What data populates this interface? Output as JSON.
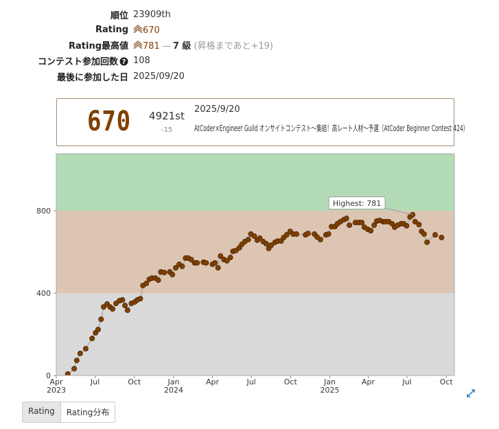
{
  "profile": {
    "rows": [
      {
        "label": "順位",
        "value": "23909th"
      },
      {
        "label": "Rating",
        "value": "670"
      },
      {
        "label": "Rating最高値",
        "value": "781",
        "dash": "—",
        "rank": "7 級",
        "note": "(昇格まであと+19)"
      },
      {
        "label": "コンテスト参加回数",
        "value": "108"
      },
      {
        "label": "最後に参加した日",
        "value": "2025/09/20"
      }
    ]
  },
  "status": {
    "rating": "670",
    "place": "4921st",
    "diff": "-15",
    "date": "2025/9/20",
    "contest": "AtCoder×Engineer Guild オンサイトコンテスト～集結！高レート人材～予選（AtCoder Beginner Contest 424）"
  },
  "chart_data": {
    "type": "line",
    "xlim": [
      "2023-04-01",
      "2025-10-20"
    ],
    "xticks": [
      {
        "value": "2023-04-01",
        "label": "Apr"
      },
      {
        "value": "2023-07-01",
        "label": "Jul"
      },
      {
        "value": "2023-10-01",
        "label": "Oct"
      },
      {
        "value": "2024-01-01",
        "label": "Jan"
      },
      {
        "value": "2024-04-01",
        "label": "Apr"
      },
      {
        "value": "2024-07-01",
        "label": "Jul"
      },
      {
        "value": "2024-10-01",
        "label": "Oct"
      },
      {
        "value": "2025-01-01",
        "label": "Jan"
      },
      {
        "value": "2025-04-01",
        "label": "Apr"
      },
      {
        "value": "2025-07-01",
        "label": "Jul"
      },
      {
        "value": "2025-10-01",
        "label": "Oct"
      }
    ],
    "xtick_years": [
      {
        "value": "2023-04-01",
        "label": "2023"
      },
      {
        "value": "2024-01-01",
        "label": "2024"
      },
      {
        "value": "2025-01-01",
        "label": "2025"
      }
    ],
    "ylim": [
      0,
      1077
    ],
    "yticks": [
      0,
      400,
      800
    ],
    "bands": [
      {
        "from": 0,
        "to": 400,
        "color": "#d9d9d9"
      },
      {
        "from": 400,
        "to": 800,
        "color": "#dcc5b2"
      },
      {
        "from": 800,
        "to": 1200,
        "color": "#b3dbb5"
      }
    ],
    "line_color": "#aaaaaa",
    "marker_color": "#804000",
    "annotation": {
      "label": "Highest: 781"
    },
    "series": [
      {
        "name": "Rating",
        "x": [
          "2023-04-28",
          "2023-05-13",
          "2023-05-19",
          "2023-05-27",
          "2023-06-09",
          "2023-06-24",
          "2023-07-02",
          "2023-07-08",
          "2023-07-15",
          "2023-07-21",
          "2023-07-29",
          "2023-08-05",
          "2023-08-11",
          "2023-08-19",
          "2023-08-27",
          "2023-09-03",
          "2023-09-09",
          "2023-09-15",
          "2023-09-24",
          "2023-10-02",
          "2023-10-08",
          "2023-10-15",
          "2023-10-21",
          "2023-10-29",
          "2023-11-05",
          "2023-11-11",
          "2023-11-19",
          "2023-11-26",
          "2023-12-02",
          "2023-12-10",
          "2023-12-23",
          "2023-12-29",
          "2024-01-06",
          "2024-01-14",
          "2024-01-21",
          "2024-01-29",
          "2024-02-04",
          "2024-02-11",
          "2024-02-19",
          "2024-02-25",
          "2024-03-11",
          "2024-03-17",
          "2024-04-01",
          "2024-04-07",
          "2024-04-14",
          "2024-04-20",
          "2024-04-28",
          "2024-05-05",
          "2024-05-13",
          "2024-05-19",
          "2024-05-26",
          "2024-06-03",
          "2024-06-09",
          "2024-06-16",
          "2024-06-24",
          "2024-06-30",
          "2024-07-08",
          "2024-07-15",
          "2024-07-21",
          "2024-07-29",
          "2024-08-05",
          "2024-08-11",
          "2024-08-17",
          "2024-08-26",
          "2024-09-01",
          "2024-09-09",
          "2024-09-15",
          "2024-09-22",
          "2024-09-30",
          "2024-10-07",
          "2024-10-15",
          "2024-11-05",
          "2024-11-11",
          "2024-11-26",
          "2024-12-02",
          "2024-12-10",
          "2024-12-23",
          "2024-12-29",
          "2025-01-05",
          "2025-01-13",
          "2025-01-19",
          "2025-01-26",
          "2025-02-03",
          "2025-02-09",
          "2025-02-16",
          "2025-03-02",
          "2025-03-10",
          "2025-03-17",
          "2025-03-23",
          "2025-03-31",
          "2025-04-07",
          "2025-04-15",
          "2025-04-21",
          "2025-04-28",
          "2025-05-06",
          "2025-05-12",
          "2025-05-19",
          "2025-05-27",
          "2025-06-02",
          "2025-06-09",
          "2025-06-17",
          "2025-06-23",
          "2025-06-30",
          "2025-07-08",
          "2025-07-14",
          "2025-07-20",
          "2025-07-29",
          "2025-08-04",
          "2025-08-10",
          "2025-08-17",
          "2025-09-05",
          "2025-09-20"
        ],
        "values": [
          7,
          33,
          73,
          107,
          130,
          180,
          207,
          223,
          273,
          333,
          347,
          333,
          323,
          350,
          363,
          367,
          340,
          317,
          350,
          357,
          367,
          373,
          437,
          447,
          467,
          473,
          473,
          463,
          503,
          500,
          503,
          490,
          523,
          540,
          530,
          570,
          570,
          563,
          547,
          547,
          550,
          547,
          540,
          547,
          523,
          580,
          563,
          557,
          573,
          603,
          607,
          620,
          637,
          650,
          660,
          687,
          677,
          657,
          667,
          650,
          640,
          617,
          633,
          647,
          653,
          653,
          670,
          683,
          700,
          687,
          687,
          683,
          690,
          687,
          673,
          660,
          683,
          687,
          723,
          723,
          737,
          747,
          757,
          763,
          730,
          743,
          743,
          743,
          720,
          710,
          703,
          730,
          750,
          753,
          747,
          747,
          747,
          737,
          720,
          730,
          737,
          737,
          727,
          770,
          781,
          747,
          733,
          700,
          687,
          647,
          683,
          670
        ]
      }
    ]
  },
  "tabs": [
    "Rating",
    "Rating分布"
  ]
}
